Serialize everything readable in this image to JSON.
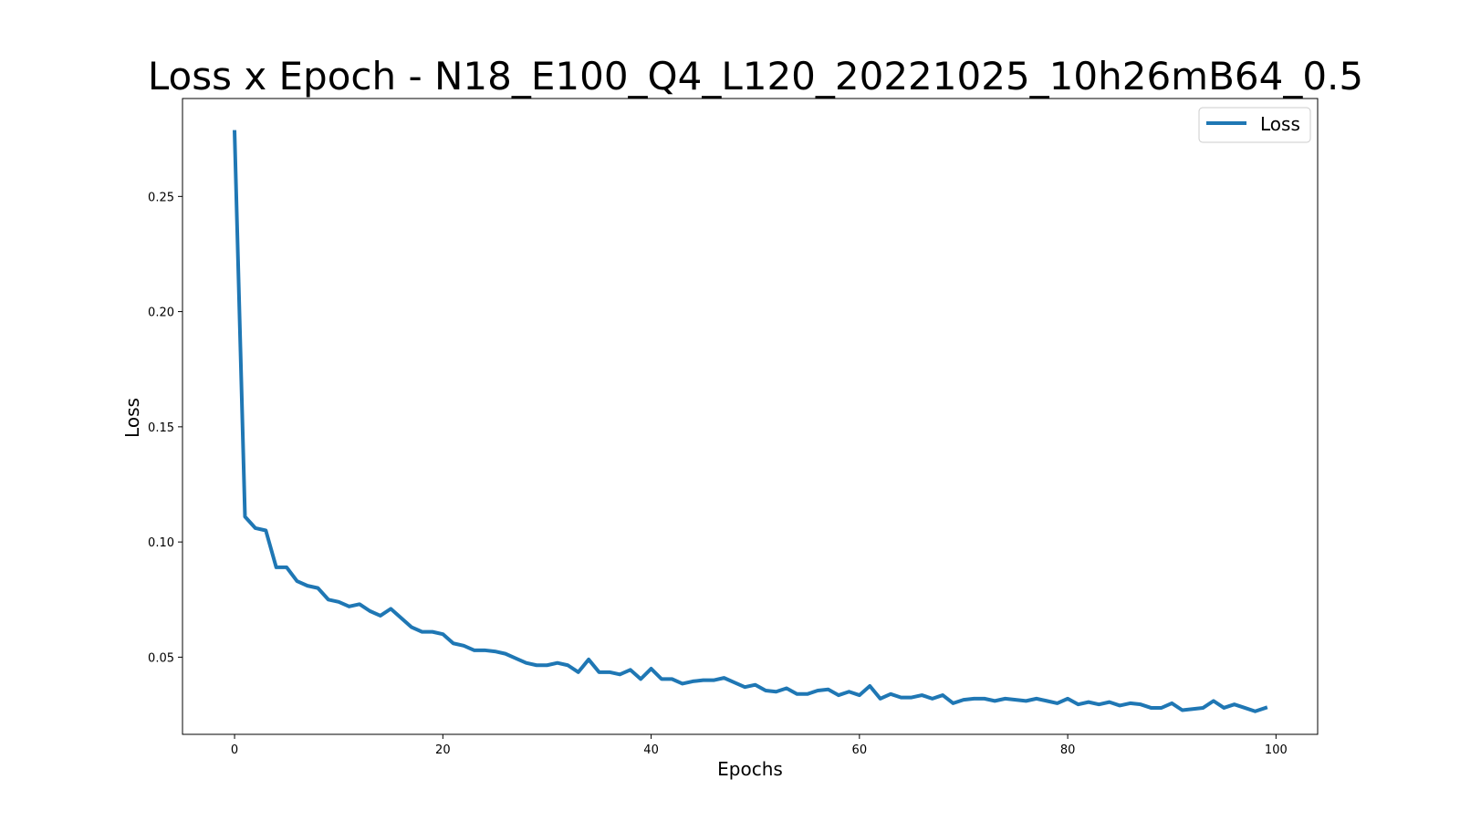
{
  "chart_data": {
    "type": "line",
    "title": "Loss x Epoch - N18_E100_Q4_L120_20221025_10h26mB64_0.5",
    "xlabel": "Epochs",
    "ylabel": "Loss",
    "xlim": [
      -5,
      104
    ],
    "ylim": [
      0.0165,
      0.2925
    ],
    "x_ticks": [
      0,
      20,
      40,
      60,
      80,
      100
    ],
    "y_ticks": [
      0.05,
      0.1,
      0.15,
      0.2,
      0.25
    ],
    "x_tick_labels": [
      "0",
      "20",
      "40",
      "60",
      "80",
      "100"
    ],
    "y_tick_labels": [
      "0.05",
      "0.10",
      "0.15",
      "0.20",
      "0.25"
    ],
    "grid": false,
    "legend_position": "top-right",
    "series": [
      {
        "name": "Loss",
        "color": "#1f77b4",
        "x": [
          0,
          1,
          2,
          3,
          4,
          5,
          6,
          7,
          8,
          9,
          10,
          11,
          12,
          13,
          14,
          15,
          16,
          17,
          18,
          19,
          20,
          21,
          22,
          23,
          24,
          25,
          26,
          27,
          28,
          29,
          30,
          31,
          32,
          33,
          34,
          35,
          36,
          37,
          38,
          39,
          40,
          41,
          42,
          43,
          44,
          45,
          46,
          47,
          48,
          49,
          50,
          51,
          52,
          53,
          54,
          55,
          56,
          57,
          58,
          59,
          60,
          61,
          62,
          63,
          64,
          65,
          66,
          67,
          68,
          69,
          70,
          71,
          72,
          73,
          74,
          75,
          76,
          77,
          78,
          79,
          80,
          81,
          82,
          83,
          84,
          85,
          86,
          87,
          88,
          89,
          90,
          91,
          92,
          93,
          94,
          95,
          96,
          97,
          98,
          99
        ],
        "values": [
          0.278,
          0.111,
          0.106,
          0.105,
          0.089,
          0.089,
          0.083,
          0.081,
          0.08,
          0.075,
          0.074,
          0.072,
          0.073,
          0.07,
          0.068,
          0.071,
          0.067,
          0.063,
          0.061,
          0.061,
          0.06,
          0.056,
          0.055,
          0.053,
          0.053,
          0.0525,
          0.0515,
          0.0495,
          0.0475,
          0.0465,
          0.0465,
          0.0475,
          0.0465,
          0.0435,
          0.049,
          0.0435,
          0.0435,
          0.0425,
          0.0445,
          0.0405,
          0.045,
          0.0405,
          0.0405,
          0.0385,
          0.0395,
          0.04,
          0.04,
          0.041,
          0.039,
          0.037,
          0.038,
          0.0355,
          0.035,
          0.0365,
          0.034,
          0.034,
          0.0355,
          0.036,
          0.0335,
          0.035,
          0.0335,
          0.0375,
          0.032,
          0.034,
          0.0325,
          0.0325,
          0.0335,
          0.032,
          0.0335,
          0.03,
          0.0315,
          0.032,
          0.032,
          0.031,
          0.032,
          0.0315,
          0.031,
          0.032,
          0.031,
          0.03,
          0.032,
          0.0295,
          0.0305,
          0.0295,
          0.0305,
          0.029,
          0.03,
          0.0295,
          0.028,
          0.028,
          0.03,
          0.027,
          0.0275,
          0.028,
          0.031,
          0.028,
          0.0295,
          0.028,
          0.0265,
          0.028
        ]
      }
    ]
  }
}
